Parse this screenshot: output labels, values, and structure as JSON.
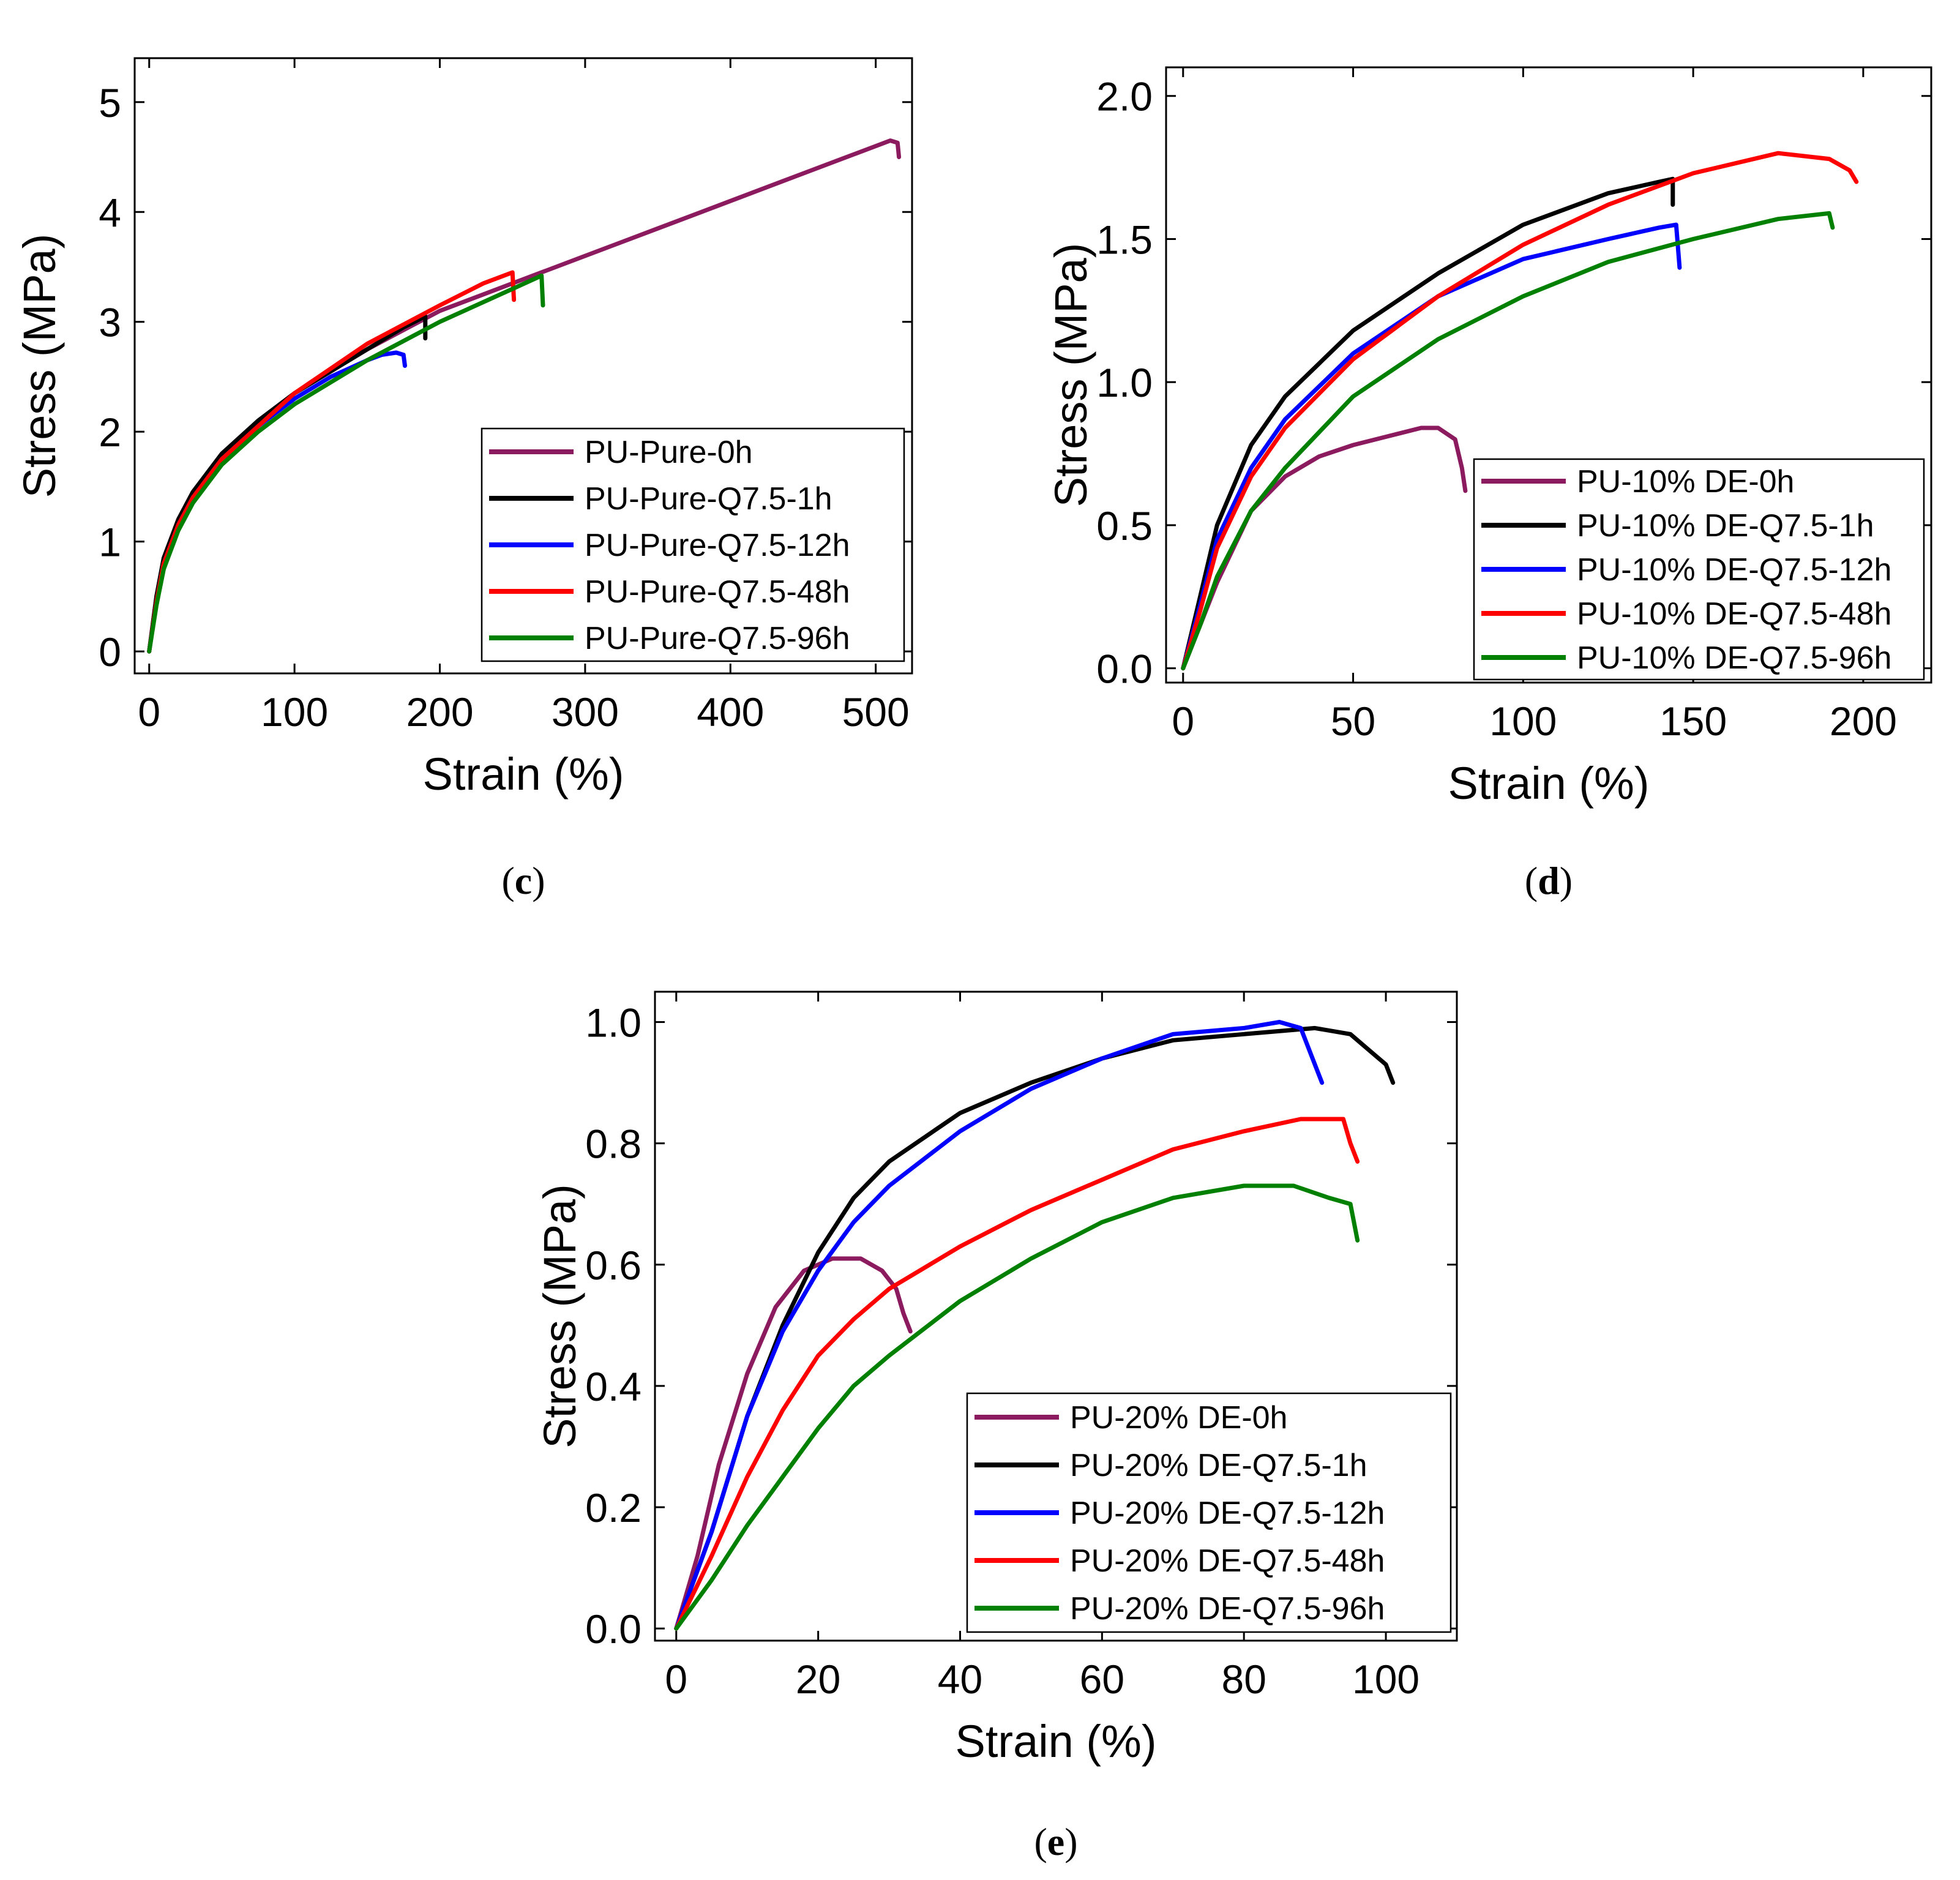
{
  "chart_data": [
    {
      "panel": "c",
      "type": "line",
      "xlabel": "Strain (%)",
      "ylabel": "Stress (MPa)",
      "xlim": [
        -10,
        525
      ],
      "ylim": [
        -0.2,
        5.4
      ],
      "xticks": [
        0,
        100,
        200,
        300,
        400,
        500
      ],
      "yticks": [
        0,
        1,
        2,
        3,
        4,
        5
      ],
      "legend_position": "bottom-right",
      "series": [
        {
          "name": "PU-Pure-0h",
          "color": "#8b1a5e",
          "points": [
            [
              0,
              0
            ],
            [
              5,
              0.5
            ],
            [
              10,
              0.85
            ],
            [
              20,
              1.2
            ],
            [
              30,
              1.45
            ],
            [
              50,
              1.8
            ],
            [
              75,
              2.1
            ],
            [
              100,
              2.35
            ],
            [
              150,
              2.75
            ],
            [
              200,
              3.1
            ],
            [
              250,
              3.35
            ],
            [
              300,
              3.6
            ],
            [
              350,
              3.85
            ],
            [
              400,
              4.1
            ],
            [
              450,
              4.35
            ],
            [
              500,
              4.6
            ],
            [
              510,
              4.65
            ],
            [
              515,
              4.63
            ],
            [
              516,
              4.5
            ]
          ]
        },
        {
          "name": "PU-Pure-Q7.5-1h",
          "color": "#000000",
          "points": [
            [
              0,
              0
            ],
            [
              5,
              0.5
            ],
            [
              10,
              0.85
            ],
            [
              20,
              1.2
            ],
            [
              30,
              1.45
            ],
            [
              50,
              1.8
            ],
            [
              75,
              2.1
            ],
            [
              100,
              2.35
            ],
            [
              125,
              2.55
            ],
            [
              150,
              2.75
            ],
            [
              175,
              2.95
            ],
            [
              190,
              3.05
            ],
            [
              190,
              2.85
            ]
          ]
        },
        {
          "name": "PU-Pure-Q7.5-12h",
          "color": "#0000ff",
          "points": [
            [
              0,
              0
            ],
            [
              5,
              0.45
            ],
            [
              10,
              0.8
            ],
            [
              20,
              1.15
            ],
            [
              30,
              1.4
            ],
            [
              50,
              1.75
            ],
            [
              75,
              2.05
            ],
            [
              100,
              2.3
            ],
            [
              125,
              2.5
            ],
            [
              150,
              2.65
            ],
            [
              160,
              2.7
            ],
            [
              170,
              2.72
            ],
            [
              175,
              2.7
            ],
            [
              176,
              2.6
            ]
          ]
        },
        {
          "name": "PU-Pure-Q7.5-48h",
          "color": "#ff0000",
          "points": [
            [
              0,
              0
            ],
            [
              5,
              0.45
            ],
            [
              10,
              0.8
            ],
            [
              20,
              1.15
            ],
            [
              30,
              1.4
            ],
            [
              50,
              1.75
            ],
            [
              75,
              2.05
            ],
            [
              100,
              2.35
            ],
            [
              150,
              2.8
            ],
            [
              200,
              3.15
            ],
            [
              230,
              3.35
            ],
            [
              250,
              3.45
            ],
            [
              251,
              3.2
            ]
          ]
        },
        {
          "name": "PU-Pure-Q7.5-96h",
          "color": "#008000",
          "points": [
            [
              0,
              0
            ],
            [
              5,
              0.42
            ],
            [
              10,
              0.75
            ],
            [
              20,
              1.1
            ],
            [
              30,
              1.35
            ],
            [
              50,
              1.7
            ],
            [
              75,
              2.0
            ],
            [
              100,
              2.25
            ],
            [
              150,
              2.65
            ],
            [
              200,
              3.0
            ],
            [
              250,
              3.3
            ],
            [
              270,
              3.42
            ],
            [
              271,
              3.15
            ]
          ]
        }
      ]
    },
    {
      "panel": "d",
      "type": "line",
      "xlabel": "Strain (%)",
      "ylabel": "Stress (MPa)",
      "xlim": [
        -5,
        220
      ],
      "ylim": [
        -0.05,
        2.1
      ],
      "xticks": [
        0,
        50,
        100,
        150,
        200
      ],
      "yticks": [
        "0.0",
        "0.5",
        "1.0",
        "1.5",
        "2.0"
      ],
      "legend_position": "bottom-right",
      "series": [
        {
          "name": "PU-10% DE-0h",
          "color": "#8b1a5e",
          "points": [
            [
              0,
              0
            ],
            [
              5,
              0.15
            ],
            [
              10,
              0.3
            ],
            [
              20,
              0.55
            ],
            [
              30,
              0.67
            ],
            [
              40,
              0.74
            ],
            [
              50,
              0.78
            ],
            [
              60,
              0.81
            ],
            [
              70,
              0.84
            ],
            [
              75,
              0.84
            ],
            [
              80,
              0.8
            ],
            [
              82,
              0.7
            ],
            [
              83,
              0.62
            ]
          ]
        },
        {
          "name": "PU-10% DE-Q7.5-1h",
          "color": "#000000",
          "points": [
            [
              0,
              0
            ],
            [
              5,
              0.25
            ],
            [
              10,
              0.5
            ],
            [
              20,
              0.78
            ],
            [
              30,
              0.95
            ],
            [
              50,
              1.18
            ],
            [
              75,
              1.38
            ],
            [
              100,
              1.55
            ],
            [
              125,
              1.66
            ],
            [
              140,
              1.7
            ],
            [
              144,
              1.71
            ],
            [
              144,
              1.62
            ]
          ]
        },
        {
          "name": "PU-10% DE-Q7.5-12h",
          "color": "#0000ff",
          "points": [
            [
              0,
              0
            ],
            [
              5,
              0.22
            ],
            [
              10,
              0.45
            ],
            [
              20,
              0.7
            ],
            [
              30,
              0.87
            ],
            [
              50,
              1.1
            ],
            [
              75,
              1.3
            ],
            [
              100,
              1.43
            ],
            [
              125,
              1.5
            ],
            [
              140,
              1.54
            ],
            [
              145,
              1.55
            ],
            [
              146,
              1.4
            ]
          ]
        },
        {
          "name": "PU-10% DE-Q7.5-48h",
          "color": "#ff0000",
          "points": [
            [
              0,
              0
            ],
            [
              5,
              0.2
            ],
            [
              10,
              0.42
            ],
            [
              20,
              0.67
            ],
            [
              30,
              0.84
            ],
            [
              50,
              1.08
            ],
            [
              75,
              1.3
            ],
            [
              100,
              1.48
            ],
            [
              125,
              1.62
            ],
            [
              150,
              1.73
            ],
            [
              175,
              1.8
            ],
            [
              190,
              1.78
            ],
            [
              196,
              1.74
            ],
            [
              198,
              1.7
            ]
          ]
        },
        {
          "name": "PU-10% DE-Q7.5-96h",
          "color": "#008000",
          "points": [
            [
              0,
              0
            ],
            [
              5,
              0.15
            ],
            [
              10,
              0.32
            ],
            [
              20,
              0.55
            ],
            [
              30,
              0.7
            ],
            [
              50,
              0.95
            ],
            [
              75,
              1.15
            ],
            [
              100,
              1.3
            ],
            [
              125,
              1.42
            ],
            [
              150,
              1.5
            ],
            [
              175,
              1.57
            ],
            [
              190,
              1.59
            ],
            [
              191,
              1.54
            ]
          ]
        }
      ]
    },
    {
      "panel": "e",
      "type": "line",
      "xlabel": "Strain (%)",
      "ylabel": "Stress (MPa)",
      "xlim": [
        -3,
        110
      ],
      "ylim": [
        -0.02,
        1.05
      ],
      "xticks": [
        0,
        20,
        40,
        60,
        80,
        100
      ],
      "yticks": [
        "0.0",
        "0.2",
        "0.4",
        "0.6",
        "0.8",
        "1.0"
      ],
      "legend_position": "bottom-right",
      "series": [
        {
          "name": "PU-20% DE-0h",
          "color": "#8b1a5e",
          "points": [
            [
              0,
              0
            ],
            [
              3,
              0.12
            ],
            [
              6,
              0.27
            ],
            [
              10,
              0.42
            ],
            [
              14,
              0.53
            ],
            [
              18,
              0.59
            ],
            [
              22,
              0.61
            ],
            [
              26,
              0.61
            ],
            [
              29,
              0.59
            ],
            [
              31,
              0.56
            ],
            [
              32,
              0.52
            ],
            [
              33,
              0.49
            ]
          ]
        },
        {
          "name": "PU-20% DE-Q7.5-1h",
          "color": "#000000",
          "points": [
            [
              0,
              0
            ],
            [
              5,
              0.16
            ],
            [
              10,
              0.35
            ],
            [
              15,
              0.5
            ],
            [
              20,
              0.62
            ],
            [
              25,
              0.71
            ],
            [
              30,
              0.77
            ],
            [
              40,
              0.85
            ],
            [
              50,
              0.9
            ],
            [
              60,
              0.94
            ],
            [
              70,
              0.97
            ],
            [
              80,
              0.98
            ],
            [
              90,
              0.99
            ],
            [
              95,
              0.98
            ],
            [
              98,
              0.95
            ],
            [
              100,
              0.93
            ],
            [
              101,
              0.9
            ]
          ]
        },
        {
          "name": "PU-20% DE-Q7.5-12h",
          "color": "#0000ff",
          "points": [
            [
              0,
              0
            ],
            [
              5,
              0.16
            ],
            [
              10,
              0.35
            ],
            [
              15,
              0.49
            ],
            [
              20,
              0.59
            ],
            [
              25,
              0.67
            ],
            [
              30,
              0.73
            ],
            [
              40,
              0.82
            ],
            [
              50,
              0.89
            ],
            [
              60,
              0.94
            ],
            [
              70,
              0.98
            ],
            [
              80,
              0.99
            ],
            [
              85,
              1.0
            ],
            [
              88,
              0.99
            ],
            [
              90,
              0.93
            ],
            [
              91,
              0.9
            ]
          ]
        },
        {
          "name": "PU-20% DE-Q7.5-48h",
          "color": "#ff0000",
          "points": [
            [
              0,
              0
            ],
            [
              5,
              0.12
            ],
            [
              10,
              0.25
            ],
            [
              15,
              0.36
            ],
            [
              20,
              0.45
            ],
            [
              25,
              0.51
            ],
            [
              30,
              0.56
            ],
            [
              40,
              0.63
            ],
            [
              50,
              0.69
            ],
            [
              60,
              0.74
            ],
            [
              70,
              0.79
            ],
            [
              80,
              0.82
            ],
            [
              88,
              0.84
            ],
            [
              94,
              0.84
            ],
            [
              95,
              0.8
            ],
            [
              96,
              0.77
            ]
          ]
        },
        {
          "name": "PU-20% DE-Q7.5-96h",
          "color": "#008000",
          "points": [
            [
              0,
              0
            ],
            [
              5,
              0.08
            ],
            [
              10,
              0.17
            ],
            [
              15,
              0.25
            ],
            [
              20,
              0.33
            ],
            [
              25,
              0.4
            ],
            [
              30,
              0.45
            ],
            [
              40,
              0.54
            ],
            [
              50,
              0.61
            ],
            [
              60,
              0.67
            ],
            [
              70,
              0.71
            ],
            [
              80,
              0.73
            ],
            [
              87,
              0.73
            ],
            [
              92,
              0.71
            ],
            [
              95,
              0.7
            ],
            [
              96,
              0.64
            ]
          ]
        }
      ]
    }
  ],
  "panel_labels": [
    "c",
    "d",
    "e"
  ]
}
